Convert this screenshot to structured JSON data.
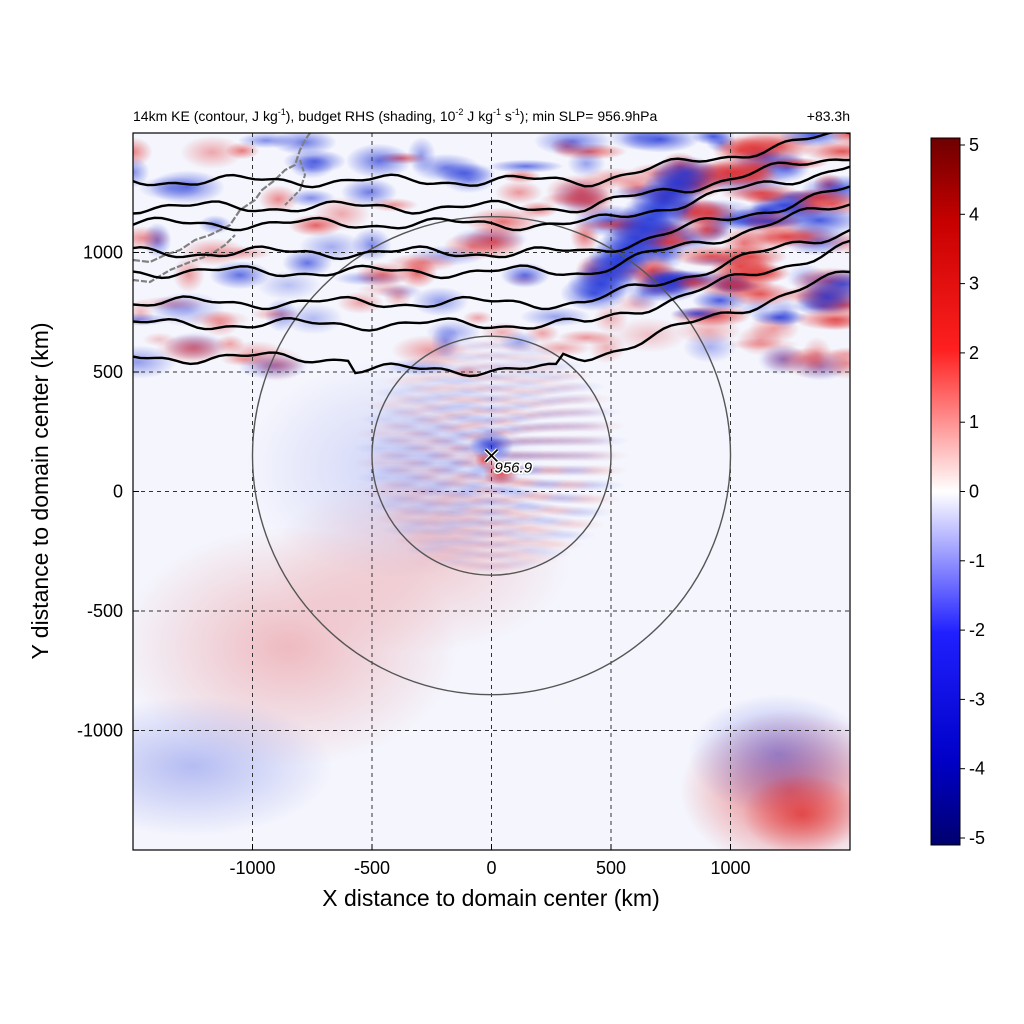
{
  "chart_data": {
    "type": "heatmap",
    "title_left": {
      "p1": "14km KE (contour, J kg",
      "s1": "-1",
      "p2": "), budget RHS (shading, 10",
      "s2": "-2",
      "p3": " J kg",
      "s3": "-1",
      "p4": " s",
      "s4": "-1",
      "p5": "); min SLP= 956.9hPa"
    },
    "title_right": "+83.3h",
    "xlabel": "X distance to domain center (km)",
    "ylabel": "Y distance to domain center (km)",
    "xlim": [
      -1500,
      1500
    ],
    "ylim": [
      -1500,
      1500
    ],
    "x_ticks": [
      -1000,
      -500,
      0,
      500,
      1000
    ],
    "y_ticks": [
      -1000,
      -500,
      0,
      500,
      1000
    ],
    "grid": "dashed",
    "colorbar": {
      "min": -5,
      "max": 5,
      "ticks": [
        5,
        4,
        3,
        2,
        1,
        0,
        -1,
        -2,
        -3,
        -4,
        -5
      ],
      "colors": [
        "#00006e",
        "#0000ff",
        "#ffffff",
        "#ff0000",
        "#6e0000"
      ]
    },
    "storm": {
      "x": 0,
      "y": 150,
      "label": "956.9"
    },
    "radius_circles": [
      {
        "center_x": 0,
        "center_y": 150,
        "radius_km": 500
      },
      {
        "center_x": 0,
        "center_y": 150,
        "radius_km": 1000
      }
    ],
    "ke_contour_base_y_km": [
      1300,
      1190,
      1120,
      1000,
      920,
      790,
      700,
      560
    ]
  }
}
